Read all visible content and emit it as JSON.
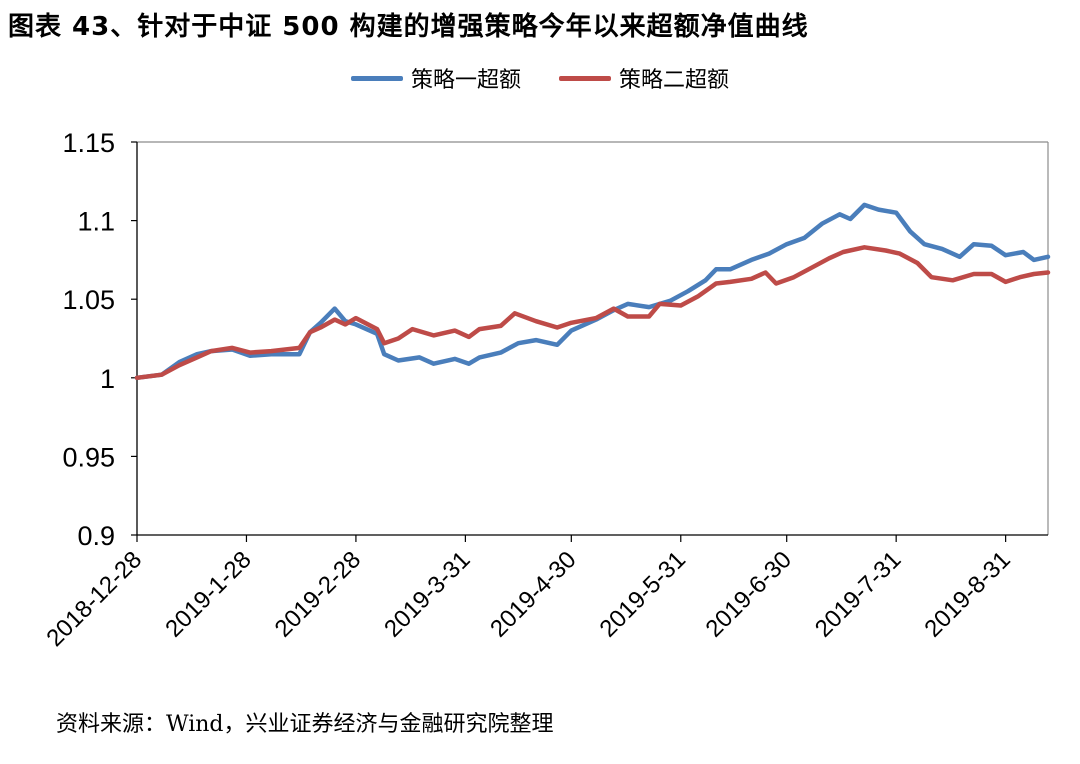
{
  "figure_title": "图表 43、针对于中证 500 构建的增强策略今年以来超额净值曲线",
  "source_note": "资料来源：Wind，兴业证券经济与金融研究院整理",
  "chart_data": {
    "type": "line",
    "ylim": [
      0.9,
      1.15
    ],
    "yticks": [
      "1.15",
      "1.1",
      "1.05",
      "1",
      "0.95",
      "0.9"
    ],
    "xtick_labels": [
      "2018-12-28",
      "2019-1-28",
      "2019-2-28",
      "2019-3-31",
      "2019-4-30",
      "2019-5-31",
      "2019-6-30",
      "2019-7-31",
      "2019-8-31"
    ],
    "x_range": [
      "2018-12-28",
      "2019-9-12"
    ],
    "legend_position": "top-center",
    "grid": false,
    "series": [
      {
        "name": "策略一超额",
        "color": "#4a7ebb",
        "points": [
          [
            "2018-12-28",
            1.0
          ],
          [
            "2019-1-4",
            1.002
          ],
          [
            "2019-1-9",
            1.01
          ],
          [
            "2019-1-14",
            1.015
          ],
          [
            "2019-1-18",
            1.017
          ],
          [
            "2019-1-24",
            1.018
          ],
          [
            "2019-1-29",
            1.014
          ],
          [
            "2019-2-4",
            1.015
          ],
          [
            "2019-2-12",
            1.015
          ],
          [
            "2019-2-15",
            1.029
          ],
          [
            "2019-2-18",
            1.035
          ],
          [
            "2019-2-22",
            1.044
          ],
          [
            "2019-2-25",
            1.036
          ],
          [
            "2019-2-28",
            1.034
          ],
          [
            "2019-3-6",
            1.028
          ],
          [
            "2019-3-8",
            1.015
          ],
          [
            "2019-3-12",
            1.011
          ],
          [
            "2019-3-18",
            1.013
          ],
          [
            "2019-3-22",
            1.009
          ],
          [
            "2019-3-28",
            1.012
          ],
          [
            "2019-4-1",
            1.009
          ],
          [
            "2019-4-4",
            1.013
          ],
          [
            "2019-4-10",
            1.016
          ],
          [
            "2019-4-15",
            1.022
          ],
          [
            "2019-4-20",
            1.024
          ],
          [
            "2019-4-26",
            1.021
          ],
          [
            "2019-4-30",
            1.03
          ],
          [
            "2019-5-7",
            1.037
          ],
          [
            "2019-5-12",
            1.043
          ],
          [
            "2019-5-16",
            1.047
          ],
          [
            "2019-5-22",
            1.045
          ],
          [
            "2019-5-28",
            1.049
          ],
          [
            "2019-6-2",
            1.055
          ],
          [
            "2019-6-7",
            1.062
          ],
          [
            "2019-6-10",
            1.069
          ],
          [
            "2019-6-14",
            1.069
          ],
          [
            "2019-6-20",
            1.075
          ],
          [
            "2019-6-25",
            1.079
          ],
          [
            "2019-6-30",
            1.085
          ],
          [
            "2019-7-5",
            1.089
          ],
          [
            "2019-7-10",
            1.098
          ],
          [
            "2019-7-15",
            1.104
          ],
          [
            "2019-7-18",
            1.101
          ],
          [
            "2019-7-22",
            1.11
          ],
          [
            "2019-7-26",
            1.107
          ],
          [
            "2019-7-31",
            1.105
          ],
          [
            "2019-8-4",
            1.093
          ],
          [
            "2019-8-8",
            1.085
          ],
          [
            "2019-8-13",
            1.082
          ],
          [
            "2019-8-18",
            1.077
          ],
          [
            "2019-8-22",
            1.085
          ],
          [
            "2019-8-27",
            1.084
          ],
          [
            "2019-8-31",
            1.078
          ],
          [
            "2019-9-5",
            1.08
          ],
          [
            "2019-9-8",
            1.075
          ],
          [
            "2019-9-12",
            1.077
          ]
        ]
      },
      {
        "name": "策略二超额",
        "color": "#be4b48",
        "points": [
          [
            "2018-12-28",
            1.0
          ],
          [
            "2019-1-4",
            1.002
          ],
          [
            "2019-1-9",
            1.008
          ],
          [
            "2019-1-14",
            1.013
          ],
          [
            "2019-1-18",
            1.017
          ],
          [
            "2019-1-24",
            1.019
          ],
          [
            "2019-1-29",
            1.016
          ],
          [
            "2019-2-4",
            1.017
          ],
          [
            "2019-2-12",
            1.019
          ],
          [
            "2019-2-15",
            1.029
          ],
          [
            "2019-2-18",
            1.032
          ],
          [
            "2019-2-22",
            1.037
          ],
          [
            "2019-2-25",
            1.034
          ],
          [
            "2019-2-28",
            1.038
          ],
          [
            "2019-3-6",
            1.031
          ],
          [
            "2019-3-8",
            1.022
          ],
          [
            "2019-3-12",
            1.025
          ],
          [
            "2019-3-16",
            1.031
          ],
          [
            "2019-3-22",
            1.027
          ],
          [
            "2019-3-28",
            1.03
          ],
          [
            "2019-4-1",
            1.026
          ],
          [
            "2019-4-4",
            1.031
          ],
          [
            "2019-4-10",
            1.033
          ],
          [
            "2019-4-14",
            1.041
          ],
          [
            "2019-4-20",
            1.036
          ],
          [
            "2019-4-26",
            1.032
          ],
          [
            "2019-4-30",
            1.035
          ],
          [
            "2019-5-7",
            1.038
          ],
          [
            "2019-5-12",
            1.044
          ],
          [
            "2019-5-16",
            1.039
          ],
          [
            "2019-5-22",
            1.039
          ],
          [
            "2019-5-25",
            1.047
          ],
          [
            "2019-5-31",
            1.046
          ],
          [
            "2019-6-5",
            1.052
          ],
          [
            "2019-6-10",
            1.06
          ],
          [
            "2019-6-14",
            1.061
          ],
          [
            "2019-6-20",
            1.063
          ],
          [
            "2019-6-24",
            1.067
          ],
          [
            "2019-6-27",
            1.06
          ],
          [
            "2019-7-2",
            1.064
          ],
          [
            "2019-7-7",
            1.07
          ],
          [
            "2019-7-12",
            1.076
          ],
          [
            "2019-7-16",
            1.08
          ],
          [
            "2019-7-22",
            1.083
          ],
          [
            "2019-7-28",
            1.081
          ],
          [
            "2019-8-1",
            1.079
          ],
          [
            "2019-8-6",
            1.073
          ],
          [
            "2019-8-10",
            1.064
          ],
          [
            "2019-8-16",
            1.062
          ],
          [
            "2019-8-22",
            1.066
          ],
          [
            "2019-8-27",
            1.066
          ],
          [
            "2019-8-31",
            1.061
          ],
          [
            "2019-9-4",
            1.064
          ],
          [
            "2019-9-8",
            1.066
          ],
          [
            "2019-9-12",
            1.067
          ]
        ]
      }
    ]
  }
}
